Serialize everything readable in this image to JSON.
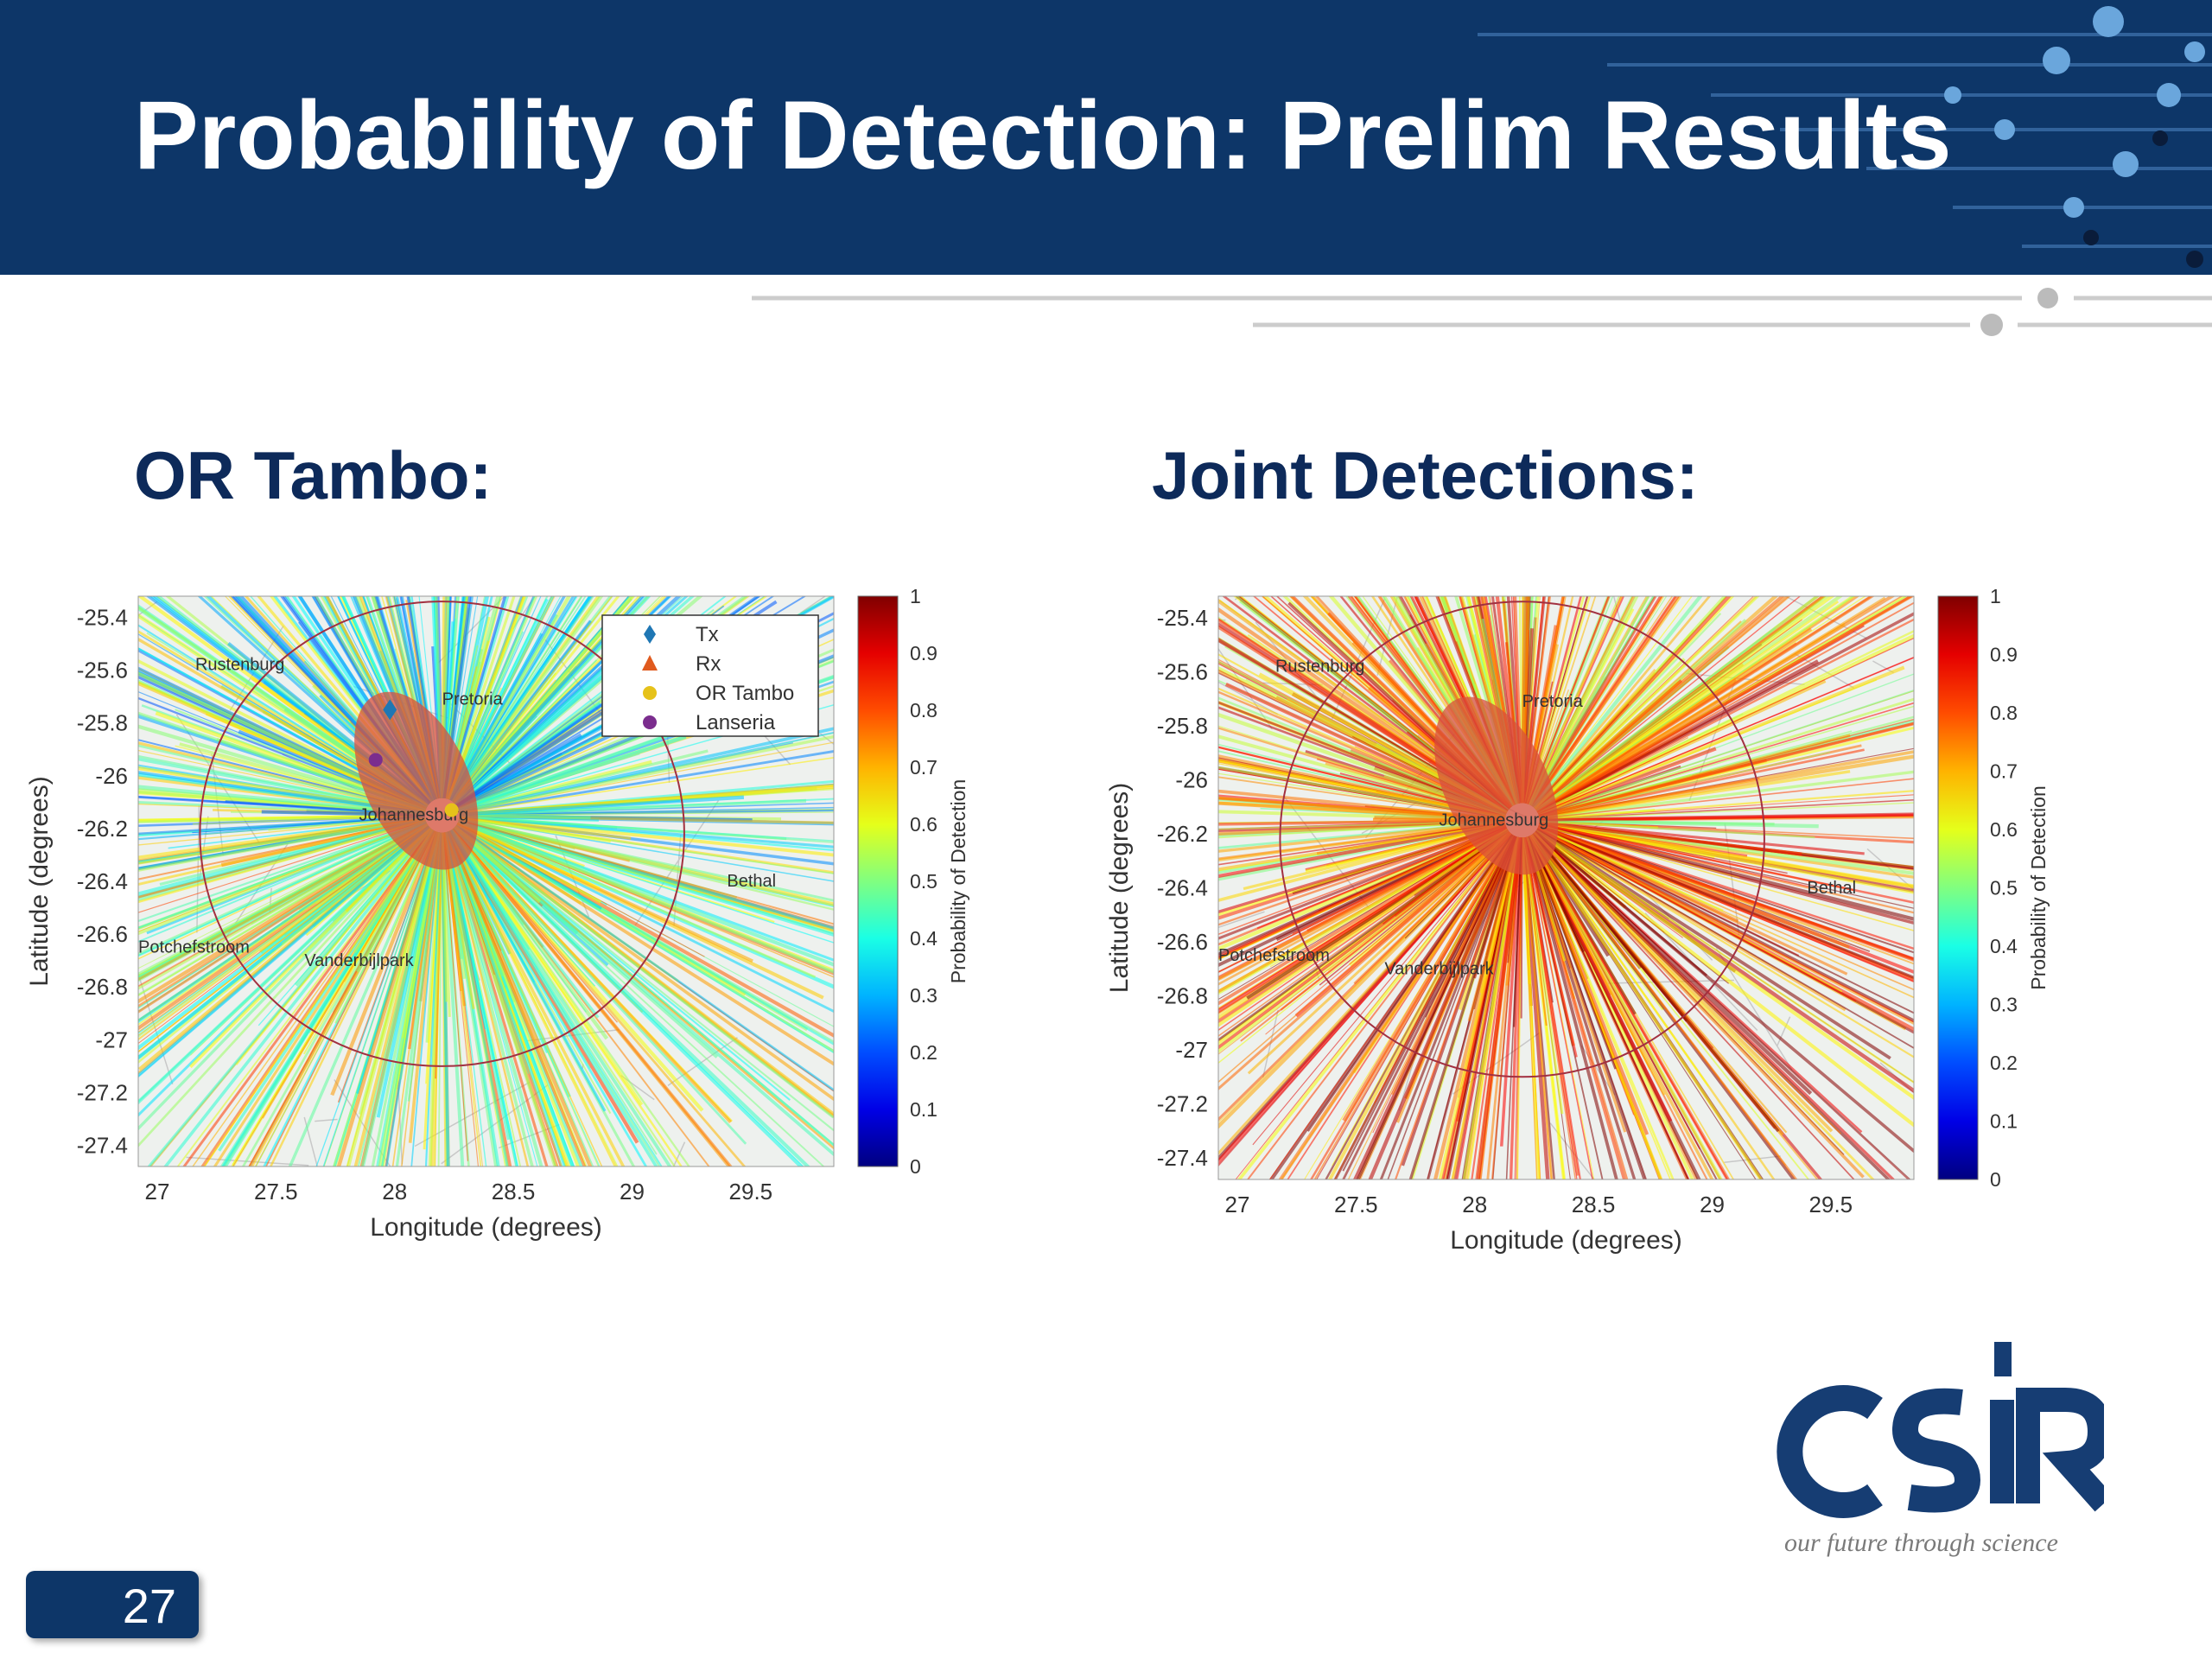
{
  "slide": {
    "title": "Probability of Detection: Prelim Results",
    "page_number": "27",
    "colors": {
      "header_bg": "#0d3668",
      "section_title": "#0d2a5a",
      "logo_blue": "#163d73"
    }
  },
  "logo": {
    "wordmark": "CSIR",
    "tagline": "our future through science"
  },
  "chart_data": [
    {
      "type": "heatmap",
      "section_title": "OR Tambo:",
      "xlabel": "Longitude (degrees)",
      "ylabel": "Latitude (degrees)",
      "colorbar_label": "Probability of Detection",
      "colormap": "jet",
      "xlim": [
        26.92,
        29.85
      ],
      "ylim": [
        -27.48,
        -25.32
      ],
      "xticks": [
        "27",
        "27.5",
        "28",
        "28.5",
        "29",
        "29.5"
      ],
      "yticks": [
        "-25.4",
        "-25.6",
        "-25.8",
        "-26",
        "-26.2",
        "-26.4",
        "-26.6",
        "-26.8",
        "-27",
        "-27.2",
        "-27.4"
      ],
      "colorbar_ticks": [
        "0",
        "0.1",
        "0.2",
        "0.3",
        "0.4",
        "0.5",
        "0.6",
        "0.7",
        "0.8",
        "0.9",
        "1"
      ],
      "legend": {
        "position": "top-right",
        "entries": [
          {
            "label": "Tx",
            "marker": "diamond",
            "color": "#1f77b4"
          },
          {
            "label": "Rx",
            "marker": "triangle",
            "color": "#e05a1e"
          },
          {
            "label": "OR Tambo",
            "marker": "circle",
            "color": "#e6c21a"
          },
          {
            "label": "Lanseria",
            "marker": "circle",
            "color": "#7b2d8e"
          }
        ]
      },
      "map_labels": [
        "Rustenburg",
        "Pretoria",
        "Johannesburg",
        "Bethal",
        "Vanderbijlpark",
        "Potchefstroom"
      ],
      "points": [
        {
          "name": "Tx",
          "lon": 27.98,
          "lat": -25.75
        },
        {
          "name": "Lanseria",
          "lon": 27.92,
          "lat": -25.94
        },
        {
          "name": "OR Tambo",
          "lon": 28.24,
          "lat": -26.13
        }
      ],
      "coverage_circle": {
        "center_lon": 28.2,
        "center_lat": -26.22,
        "radius_deg": 1.0
      }
    },
    {
      "type": "heatmap",
      "section_title": "Joint Detections:",
      "xlabel": "Longitude (degrees)",
      "ylabel": "Latitude (degrees)",
      "colorbar_label": "Probability of Detection",
      "colormap": "jet",
      "xlim": [
        26.92,
        29.85
      ],
      "ylim": [
        -27.48,
        -25.32
      ],
      "xticks": [
        "27",
        "27.5",
        "28",
        "28.5",
        "29",
        "29.5"
      ],
      "yticks": [
        "-25.4",
        "-25.6",
        "-25.8",
        "-26",
        "-26.2",
        "-26.4",
        "-26.6",
        "-26.8",
        "-27",
        "-27.2",
        "-27.4"
      ],
      "colorbar_ticks": [
        "0",
        "0.1",
        "0.2",
        "0.3",
        "0.4",
        "0.5",
        "0.6",
        "0.7",
        "0.8",
        "0.9",
        "1"
      ],
      "map_labels": [
        "Rustenburg",
        "Pretoria",
        "Johannesburg",
        "Bethal",
        "Vanderbijlpark",
        "Potchefstroom"
      ],
      "coverage_circle": {
        "center_lon": 28.2,
        "center_lat": -26.22,
        "radius_deg": 1.0
      }
    }
  ]
}
